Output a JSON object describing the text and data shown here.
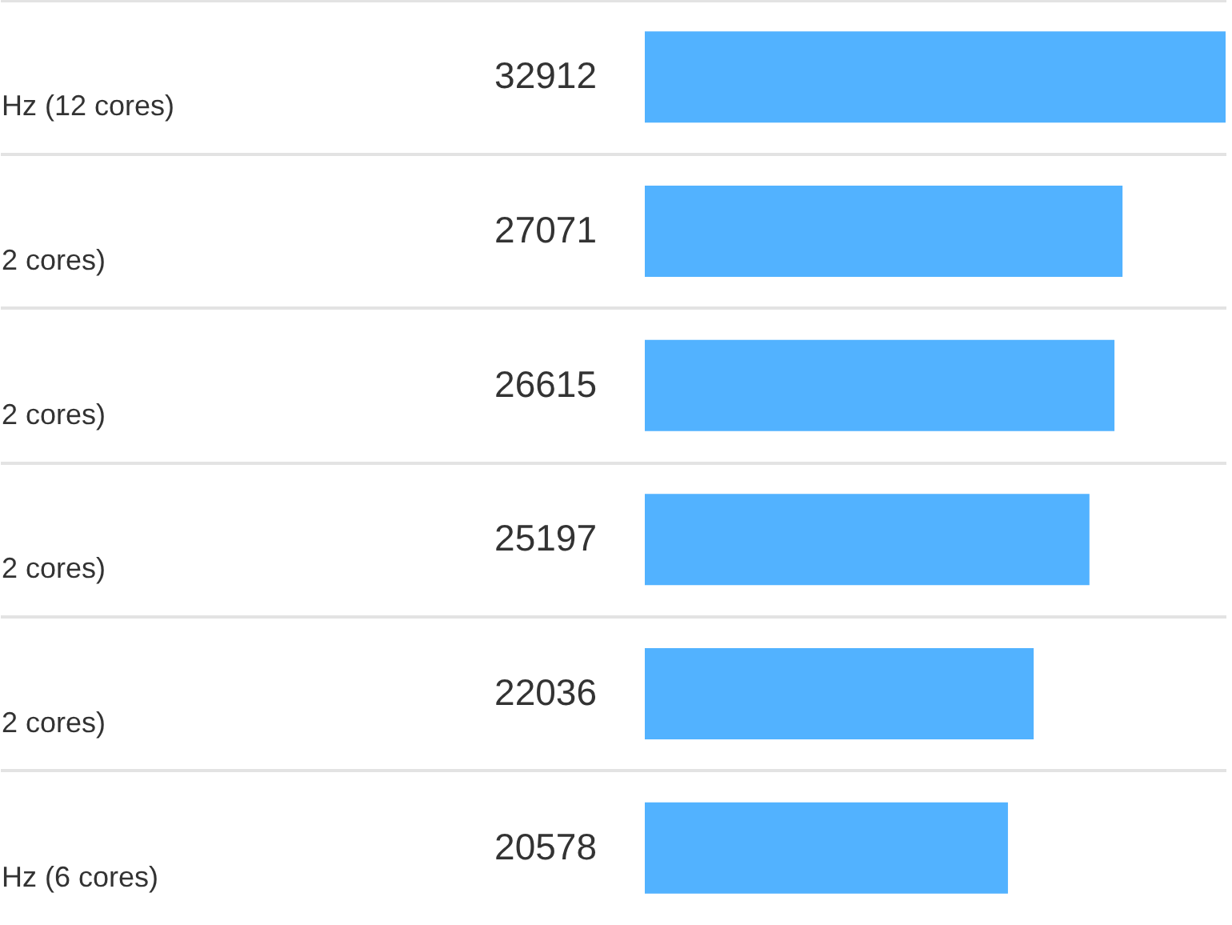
{
  "chart_data": {
    "type": "bar",
    "orientation": "horizontal",
    "categories": [
      "Hz (12 cores)",
      "2 cores)",
      "2 cores)",
      "2 cores)",
      "2 cores)",
      "Hz (6 cores)"
    ],
    "values": [
      32912,
      27071,
      26615,
      25197,
      22036,
      20578
    ],
    "color": "#52b2ff",
    "data_labels": true,
    "grid": "y",
    "tick_labels": "y"
  }
}
